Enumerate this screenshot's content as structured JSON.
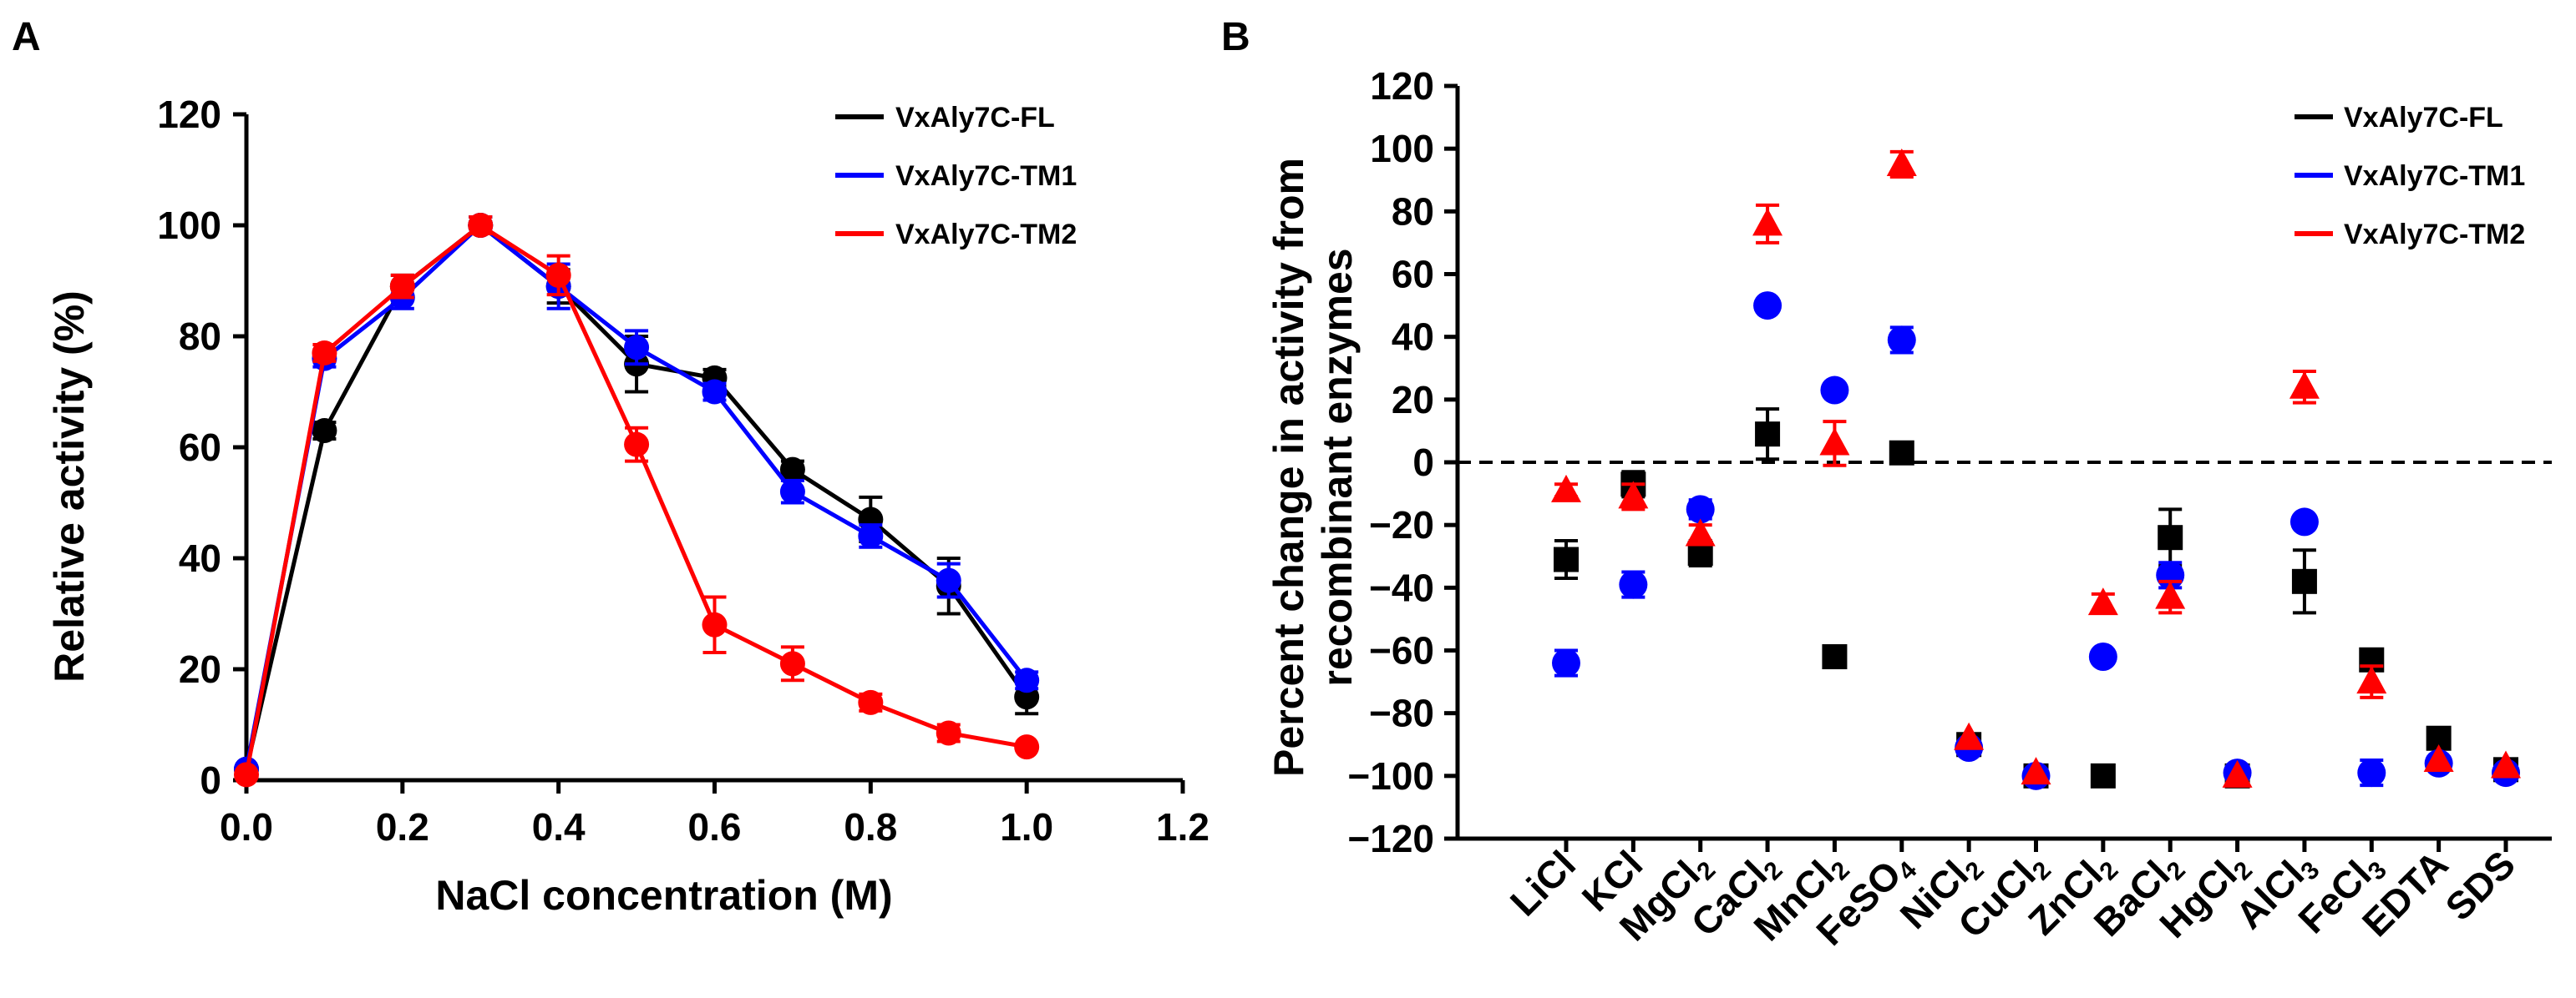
{
  "chart_data": [
    {
      "panel": "A",
      "type": "line",
      "xlabel": "NaCl concentration (M)",
      "ylabel": "Relative activity (%)",
      "xlim": [
        0.0,
        1.2
      ],
      "ylim": [
        0,
        120
      ],
      "xticks": [
        0.0,
        0.2,
        0.4,
        0.6,
        0.8,
        1.0,
        1.2
      ],
      "xtick_labels": [
        "0.0",
        "0.2",
        "0.4",
        "0.6",
        "0.8",
        "1.0",
        "1.2"
      ],
      "yticks": [
        0,
        20,
        40,
        60,
        80,
        100,
        120
      ],
      "ytick_labels": [
        "0",
        "20",
        "40",
        "60",
        "80",
        "100",
        "120"
      ],
      "legend_position": "top-right",
      "x": [
        0.0,
        0.1,
        0.2,
        0.3,
        0.4,
        0.5,
        0.6,
        0.7,
        0.8,
        0.9,
        1.0
      ],
      "series": [
        {
          "name": "VxAly7C-FL",
          "color": "#000000",
          "values": [
            2,
            63,
            89,
            100,
            89,
            75,
            72.5,
            56,
            47,
            35,
            15
          ],
          "errors": [
            1,
            1.5,
            2,
            1.5,
            3,
            5,
            1.5,
            1.5,
            4,
            5,
            3
          ]
        },
        {
          "name": "VxAly7C-TM1",
          "color": "#0000ff",
          "values": [
            2,
            76,
            87,
            100,
            89,
            78,
            70,
            52,
            44,
            36,
            18
          ],
          "errors": [
            1,
            1.5,
            2,
            1.5,
            4,
            3,
            1.5,
            2,
            2,
            3,
            1.5
          ]
        },
        {
          "name": "VxAly7C-TM2",
          "color": "#ff0000",
          "values": [
            1,
            77,
            89,
            100,
            91,
            60.5,
            28,
            21,
            14,
            8.5,
            6
          ],
          "errors": [
            1,
            1.5,
            2,
            1.5,
            3.5,
            3,
            5,
            3,
            1.5,
            1.5,
            1
          ]
        }
      ]
    },
    {
      "panel": "B",
      "type": "scatter",
      "xlabel": "",
      "ylabel": "Percent change in activity from recombinant enzymes",
      "ylabel_lines": [
        "Percent change in activity from",
        "recombinant enzymes"
      ],
      "ylim": [
        -120,
        120
      ],
      "yticks": [
        -120,
        -100,
        -80,
        -60,
        -40,
        -20,
        0,
        20,
        40,
        60,
        80,
        100,
        120
      ],
      "ytick_labels": [
        "−120",
        "−100",
        "−80",
        "−60",
        "−40",
        "−20",
        "0",
        "20",
        "40",
        "60",
        "80",
        "100",
        "120"
      ],
      "reference_line": 0,
      "legend_position": "top-right",
      "categories": [
        "LiCl",
        "KCl",
        "MgCl₂",
        "CaCl₂",
        "MnCl₂",
        "FeSO₄",
        "NiCl₂",
        "CuCl₂",
        "ZnCl₂",
        "BaCl₂",
        "HgCl₂",
        "AlCl₃",
        "FeCl₃",
        "EDTA",
        "SDS"
      ],
      "series": [
        {
          "name": "VxAly7C-FL",
          "color": "#000000",
          "marker": "square",
          "values": [
            -31,
            -7,
            -29,
            9,
            -62,
            3,
            -90,
            -100,
            -100,
            -24,
            -100,
            -38,
            -63,
            -88,
            -98
          ],
          "errors": [
            6,
            4,
            4,
            8,
            0,
            3,
            0,
            0,
            0,
            9,
            0,
            10,
            0,
            0,
            0
          ]
        },
        {
          "name": "VxAly7C-TM1",
          "color": "#0000ff",
          "marker": "circle",
          "values": [
            -64,
            -39,
            -15,
            50,
            23,
            39,
            -91,
            -100,
            -62,
            -36,
            -99,
            -19,
            -99,
            -96,
            -99
          ],
          "errors": [
            4,
            4,
            3,
            0,
            0,
            4,
            0,
            0,
            0,
            4,
            0,
            0,
            4,
            0,
            0
          ]
        },
        {
          "name": "VxAly7C-TM2",
          "color": "#ff0000",
          "marker": "triangle",
          "values": [
            -9,
            -11,
            -23,
            76,
            6,
            95,
            -88,
            -99,
            -45,
            -43,
            -100,
            24,
            -70,
            -95,
            -97
          ],
          "errors": [
            2,
            4,
            3,
            6,
            7,
            4,
            0,
            0,
            3,
            5,
            0,
            5,
            5,
            0,
            0
          ]
        }
      ]
    }
  ],
  "panels": {
    "a": {
      "letter": "A"
    },
    "b": {
      "letter": "B"
    }
  }
}
